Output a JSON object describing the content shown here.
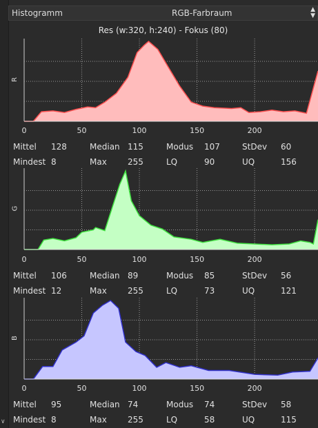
{
  "header": {
    "title": "Histogramm",
    "colorspace": "RGB-Farbraum"
  },
  "res_info": "Res (w:320, h:240) - Fokus (80)",
  "stat_labels": {
    "mean": "Mittel",
    "median": "Median",
    "mode": "Modus",
    "stdev": "StDev",
    "min": "Mindest",
    "max": "Max",
    "lq": "LQ",
    "uq": "UQ"
  },
  "x_ticks": [
    "0",
    "50",
    "100",
    "150",
    "200"
  ],
  "channels": [
    {
      "label": "R",
      "color": "#ff5050",
      "fill": "#ffbcbc",
      "stats": {
        "mean": "128",
        "median": "115",
        "mode": "107",
        "stdev": "60",
        "min": "8",
        "max": "255",
        "lq": "90",
        "uq": "156"
      },
      "curve": [
        [
          0,
          0
        ],
        [
          8,
          0
        ],
        [
          15,
          0.12
        ],
        [
          25,
          0.13
        ],
        [
          35,
          0.11
        ],
        [
          45,
          0.15
        ],
        [
          55,
          0.18
        ],
        [
          62,
          0.17
        ],
        [
          70,
          0.24
        ],
        [
          80,
          0.35
        ],
        [
          90,
          0.55
        ],
        [
          98,
          0.86
        ],
        [
          104,
          0.95
        ],
        [
          108,
          1.0
        ],
        [
          116,
          0.9
        ],
        [
          125,
          0.68
        ],
        [
          135,
          0.44
        ],
        [
          145,
          0.24
        ],
        [
          155,
          0.19
        ],
        [
          165,
          0.17
        ],
        [
          180,
          0.16
        ],
        [
          188,
          0.17
        ],
        [
          195,
          0.11
        ],
        [
          205,
          0.12
        ],
        [
          215,
          0.14
        ],
        [
          225,
          0.12
        ],
        [
          235,
          0.13
        ],
        [
          245,
          0.1
        ],
        [
          255,
          0.63
        ]
      ],
      "spike": [
        251,
        0.15,
        0.63
      ]
    },
    {
      "label": "G",
      "color": "#40e040",
      "fill": "#c4ffc4",
      "stats": {
        "mean": "106",
        "median": "89",
        "mode": "85",
        "stdev": "56",
        "min": "12",
        "max": "255",
        "lq": "73",
        "uq": "121"
      },
      "curve": [
        [
          0,
          0
        ],
        [
          12,
          0
        ],
        [
          17,
          0.12
        ],
        [
          25,
          0.14
        ],
        [
          35,
          0.11
        ],
        [
          45,
          0.15
        ],
        [
          50,
          0.22
        ],
        [
          60,
          0.25
        ],
        [
          62,
          0.28
        ],
        [
          70,
          0.24
        ],
        [
          77,
          0.56
        ],
        [
          83,
          0.83
        ],
        [
          88,
          1.0
        ],
        [
          93,
          0.62
        ],
        [
          100,
          0.43
        ],
        [
          110,
          0.31
        ],
        [
          120,
          0.26
        ],
        [
          130,
          0.16
        ],
        [
          145,
          0.13
        ],
        [
          155,
          0.09
        ],
        [
          170,
          0.13
        ],
        [
          185,
          0.08
        ],
        [
          200,
          0.07
        ],
        [
          215,
          0.06
        ],
        [
          230,
          0.07
        ],
        [
          240,
          0.11
        ],
        [
          248,
          0.09
        ],
        [
          251,
          0.07
        ],
        [
          255,
          0.38
        ]
      ],
      "spike": [
        251,
        0.07,
        0.38
      ]
    },
    {
      "label": "B",
      "color": "#3030c8",
      "fill": "#c6c6ff",
      "stats": {
        "mean": "95",
        "median": "74",
        "mode": "74",
        "stdev": "58",
        "min": "8",
        "max": "255",
        "lq": "58",
        "uq": "115"
      },
      "curve": [
        [
          0,
          0
        ],
        [
          8,
          0
        ],
        [
          16,
          0.16
        ],
        [
          25,
          0.16
        ],
        [
          33,
          0.37
        ],
        [
          45,
          0.47
        ],
        [
          52,
          0.55
        ],
        [
          60,
          0.84
        ],
        [
          68,
          0.94
        ],
        [
          75,
          1.0
        ],
        [
          82,
          0.9
        ],
        [
          88,
          0.47
        ],
        [
          97,
          0.35
        ],
        [
          105,
          0.3
        ],
        [
          115,
          0.15
        ],
        [
          123,
          0.21
        ],
        [
          135,
          0.15
        ],
        [
          145,
          0.17
        ],
        [
          160,
          0.11
        ],
        [
          178,
          0.11
        ],
        [
          200,
          0.06
        ],
        [
          220,
          0.05
        ],
        [
          233,
          0.09
        ],
        [
          248,
          0.1
        ],
        [
          255,
          0.27
        ]
      ],
      "spike": [
        251,
        0.12,
        0.27
      ]
    }
  ]
}
